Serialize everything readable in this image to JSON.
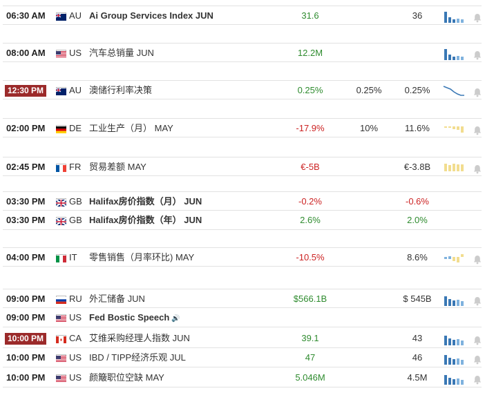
{
  "colors": {
    "badge": "#9b2a2a",
    "positive": "#2e8b2e",
    "negative": "#cc2222",
    "bar_blue": "#3a78b5",
    "bar_light": "#7fb2de",
    "bar_yellow": "#f2dd8f",
    "line_blue": "#3a78b5"
  },
  "events": [
    {
      "time": "06:30 AM",
      "highlight": false,
      "flag": "au",
      "country": "AU",
      "title": "Ai Group Services Index JUN",
      "title_bold": true,
      "actual": "31.6",
      "actual_color": "green",
      "forecast": "",
      "previous": "36",
      "chart": "bars-blue",
      "sound": false
    },
    {
      "time": "08:00 AM",
      "highlight": false,
      "flag": "us",
      "country": "US",
      "title": "汽车总销量 JUN",
      "title_bold": false,
      "actual": "12.2M",
      "actual_color": "green",
      "forecast": "",
      "previous": "",
      "chart": "bars-blue",
      "sound": false
    },
    {
      "time": "12:30 PM",
      "highlight": true,
      "flag": "au",
      "country": "AU",
      "title": "澳储行利率决策",
      "title_bold": false,
      "actual": "0.25%",
      "actual_color": "green",
      "forecast": "0.25%",
      "previous": "0.25%",
      "chart": "line-down",
      "sound": false
    },
    {
      "time": "02:00 PM",
      "highlight": false,
      "flag": "de",
      "country": "DE",
      "title": "工业生产（月） MAY",
      "title_bold": false,
      "actual": "-17.9%",
      "actual_color": "red",
      "forecast": "10%",
      "previous": "11.6%",
      "chart": "bars-yellow-down",
      "sound": false
    },
    {
      "time": "02:45 PM",
      "highlight": false,
      "flag": "fr",
      "country": "FR",
      "title": "贸易差额 MAY",
      "title_bold": false,
      "actual": "€-5B",
      "actual_color": "red",
      "forecast": "",
      "previous": "€-3.8B",
      "chart": "bars-yellow-up",
      "sound": false
    },
    {
      "time": "03:30 PM",
      "highlight": false,
      "flag": "gb",
      "country": "GB",
      "title": "Halifax房价指数（月） JUN",
      "title_bold": true,
      "actual": "-0.2%",
      "actual_color": "red",
      "forecast": "",
      "previous": "-0.6%",
      "previous_color": "red",
      "chart": "none",
      "sound": false
    },
    {
      "time": "03:30 PM",
      "highlight": false,
      "flag": "gb",
      "country": "GB",
      "title": "Halifax房价指数（年） JUN",
      "title_bold": true,
      "actual": "2.6%",
      "actual_color": "green",
      "forecast": "",
      "previous": "2.0%",
      "previous_color": "green",
      "chart": "none",
      "sound": false
    },
    {
      "time": "04:00 PM",
      "highlight": false,
      "flag": "it",
      "country": "IT",
      "title": "零售销售（月率环比) MAY",
      "title_bold": false,
      "actual": "-10.5%",
      "actual_color": "red",
      "forecast": "",
      "previous": "8.6%",
      "chart": "bars-mixed",
      "sound": false
    },
    {
      "time": "09:00 PM",
      "highlight": false,
      "flag": "ru",
      "country": "RU",
      "title": "外汇储备 JUN",
      "title_bold": false,
      "actual": "$566.1B",
      "actual_color": "green",
      "forecast": "",
      "previous": "$ 545B",
      "chart": "bars-blue-tall",
      "sound": false
    },
    {
      "time": "09:00 PM",
      "highlight": false,
      "flag": "us",
      "country": "US",
      "title": "Fed Bostic Speech",
      "title_bold": true,
      "actual": "",
      "actual_color": "green",
      "forecast": "",
      "previous": "",
      "chart": "none",
      "sound": true
    },
    {
      "time": "10:00 PM",
      "highlight": true,
      "flag": "ca",
      "country": "CA",
      "title": "艾维采购经理人指数 JUN",
      "title_bold": false,
      "actual": "39.1",
      "actual_color": "green",
      "forecast": "",
      "previous": "43",
      "chart": "bars-blue-tall",
      "sound": false
    },
    {
      "time": "10:00 PM",
      "highlight": false,
      "flag": "us",
      "country": "US",
      "title": "IBD / TIPP经济乐观 JUL",
      "title_bold": false,
      "actual": "47",
      "actual_color": "green",
      "forecast": "",
      "previous": "46",
      "chart": "bars-blue-tall",
      "sound": false
    },
    {
      "time": "10:00 PM",
      "highlight": false,
      "flag": "us",
      "country": "US",
      "title": "颜簸职位空缺 MAY",
      "title_bold": false,
      "actual": "5.046M",
      "actual_color": "green",
      "forecast": "",
      "previous": "4.5M",
      "chart": "bars-blue-tall",
      "sound": false
    }
  ]
}
